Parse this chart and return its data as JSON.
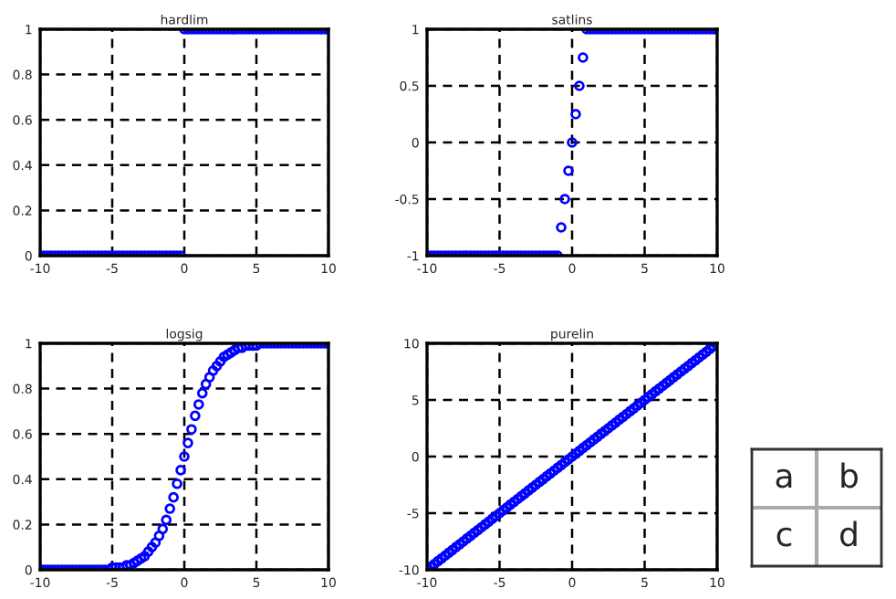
{
  "chart_data": [
    {
      "type": "scatter",
      "title": "hardlim",
      "color": "#0000ff",
      "marker": "circle",
      "grid": true,
      "xlim": [
        -10,
        10
      ],
      "ylim": [
        0,
        1
      ],
      "xticks": [
        -10,
        -5,
        0,
        5,
        10
      ],
      "yticks": [
        0,
        0.2,
        0.4,
        0.6,
        0.8,
        1
      ],
      "x": [
        -10,
        -9.75,
        -9.5,
        -9.25,
        -9,
        -8.75,
        -8.5,
        -8.25,
        -8,
        -7.75,
        -7.5,
        -7.25,
        -7,
        -6.75,
        -6.5,
        -6.25,
        -6,
        -5.75,
        -5.5,
        -5.25,
        -5,
        -4.75,
        -4.5,
        -4.25,
        -4,
        -3.75,
        -3.5,
        -3.25,
        -3,
        -2.75,
        -2.5,
        -2.25,
        -2,
        -1.75,
        -1.5,
        -1.25,
        -1,
        -0.75,
        -0.5,
        -0.25,
        0,
        0.25,
        0.5,
        0.75,
        1,
        1.25,
        1.5,
        1.75,
        2,
        2.25,
        2.5,
        2.75,
        3,
        3.25,
        3.5,
        3.75,
        4,
        4.25,
        4.5,
        4.75,
        5,
        5.25,
        5.5,
        5.75,
        6,
        6.25,
        6.5,
        6.75,
        7,
        7.25,
        7.5,
        7.75,
        8,
        8.25,
        8.5,
        8.75,
        9,
        9.25,
        9.5,
        9.75,
        10
      ],
      "values": [
        0,
        0,
        0,
        0,
        0,
        0,
        0,
        0,
        0,
        0,
        0,
        0,
        0,
        0,
        0,
        0,
        0,
        0,
        0,
        0,
        0,
        0,
        0,
        0,
        0,
        0,
        0,
        0,
        0,
        0,
        0,
        0,
        0,
        0,
        0,
        0,
        0,
        0,
        0,
        0,
        1,
        1,
        1,
        1,
        1,
        1,
        1,
        1,
        1,
        1,
        1,
        1,
        1,
        1,
        1,
        1,
        1,
        1,
        1,
        1,
        1,
        1,
        1,
        1,
        1,
        1,
        1,
        1,
        1,
        1,
        1,
        1,
        1,
        1,
        1,
        1,
        1,
        1,
        1,
        1,
        1
      ]
    },
    {
      "type": "scatter",
      "title": "satlins",
      "color": "#0000ff",
      "marker": "circle",
      "grid": true,
      "xlim": [
        -10,
        10
      ],
      "ylim": [
        -1,
        1
      ],
      "xticks": [
        -10,
        -5,
        0,
        5,
        10
      ],
      "yticks": [
        -1,
        -0.5,
        0,
        0.5,
        1
      ],
      "x": [
        -10,
        -9.75,
        -9.5,
        -9.25,
        -9,
        -8.75,
        -8.5,
        -8.25,
        -8,
        -7.75,
        -7.5,
        -7.25,
        -7,
        -6.75,
        -6.5,
        -6.25,
        -6,
        -5.75,
        -5.5,
        -5.25,
        -5,
        -4.75,
        -4.5,
        -4.25,
        -4,
        -3.75,
        -3.5,
        -3.25,
        -3,
        -2.75,
        -2.5,
        -2.25,
        -2,
        -1.75,
        -1.5,
        -1.25,
        -1,
        -0.75,
        -0.5,
        -0.25,
        0,
        0.25,
        0.5,
        0.75,
        1,
        1.25,
        1.5,
        1.75,
        2,
        2.25,
        2.5,
        2.75,
        3,
        3.25,
        3.5,
        3.75,
        4,
        4.25,
        4.5,
        4.75,
        5,
        5.25,
        5.5,
        5.75,
        6,
        6.25,
        6.5,
        6.75,
        7,
        7.25,
        7.5,
        7.75,
        8,
        8.25,
        8.5,
        8.75,
        9,
        9.25,
        9.5,
        9.75,
        10
      ],
      "values": [
        -1,
        -1,
        -1,
        -1,
        -1,
        -1,
        -1,
        -1,
        -1,
        -1,
        -1,
        -1,
        -1,
        -1,
        -1,
        -1,
        -1,
        -1,
        -1,
        -1,
        -1,
        -1,
        -1,
        -1,
        -1,
        -1,
        -1,
        -1,
        -1,
        -1,
        -1,
        -1,
        -1,
        -1,
        -1,
        -1,
        -1,
        -0.75,
        -0.5,
        -0.25,
        0,
        0.25,
        0.5,
        0.75,
        1,
        1,
        1,
        1,
        1,
        1,
        1,
        1,
        1,
        1,
        1,
        1,
        1,
        1,
        1,
        1,
        1,
        1,
        1,
        1,
        1,
        1,
        1,
        1,
        1,
        1,
        1,
        1,
        1,
        1,
        1,
        1,
        1,
        1,
        1,
        1,
        1
      ]
    },
    {
      "type": "scatter",
      "title": "logsig",
      "color": "#0000ff",
      "marker": "circle",
      "grid": true,
      "xlim": [
        -10,
        10
      ],
      "ylim": [
        0,
        1
      ],
      "xticks": [
        -10,
        -5,
        0,
        5,
        10
      ],
      "yticks": [
        0,
        0.2,
        0.4,
        0.6,
        0.8,
        1
      ],
      "x": [
        -10,
        -9.75,
        -9.5,
        -9.25,
        -9,
        -8.75,
        -8.5,
        -8.25,
        -8,
        -7.75,
        -7.5,
        -7.25,
        -7,
        -6.75,
        -6.5,
        -6.25,
        -6,
        -5.75,
        -5.5,
        -5.25,
        -5,
        -4.75,
        -4.5,
        -4.25,
        -4,
        -3.75,
        -3.5,
        -3.25,
        -3,
        -2.75,
        -2.5,
        -2.25,
        -2,
        -1.75,
        -1.5,
        -1.25,
        -1,
        -0.75,
        -0.5,
        -0.25,
        0,
        0.25,
        0.5,
        0.75,
        1,
        1.25,
        1.5,
        1.75,
        2,
        2.25,
        2.5,
        2.75,
        3,
        3.25,
        3.5,
        3.75,
        4,
        4.25,
        4.5,
        4.75,
        5,
        5.25,
        5.5,
        5.75,
        6,
        6.25,
        6.5,
        6.75,
        7,
        7.25,
        7.5,
        7.75,
        8,
        8.25,
        8.5,
        8.75,
        9,
        9.25,
        9.5,
        9.75,
        10
      ],
      "values": [
        0,
        0,
        0,
        0,
        0,
        0,
        0,
        0,
        0,
        0,
        0,
        0,
        0,
        0,
        0,
        0,
        0,
        0,
        0,
        0,
        0.01,
        0.01,
        0.01,
        0.01,
        0.02,
        0.02,
        0.03,
        0.04,
        0.05,
        0.06,
        0.08,
        0.1,
        0.12,
        0.15,
        0.18,
        0.22,
        0.27,
        0.32,
        0.38,
        0.44,
        0.5,
        0.56,
        0.62,
        0.68,
        0.73,
        0.78,
        0.82,
        0.85,
        0.88,
        0.9,
        0.92,
        0.94,
        0.95,
        0.96,
        0.97,
        0.98,
        0.98,
        0.99,
        0.99,
        0.99,
        0.99,
        1,
        1,
        1,
        1,
        1,
        1,
        1,
        1,
        1,
        1,
        1,
        1,
        1,
        1,
        1,
        1,
        1,
        1,
        1,
        1
      ]
    },
    {
      "type": "scatter",
      "title": "purelin",
      "color": "#0000ff",
      "marker": "circle",
      "grid": true,
      "xlim": [
        -10,
        10
      ],
      "ylim": [
        -10,
        10
      ],
      "xticks": [
        -10,
        -5,
        0,
        5,
        10
      ],
      "yticks": [
        -10,
        -5,
        0,
        5,
        10
      ],
      "x": [
        -10,
        -9.75,
        -9.5,
        -9.25,
        -9,
        -8.75,
        -8.5,
        -8.25,
        -8,
        -7.75,
        -7.5,
        -7.25,
        -7,
        -6.75,
        -6.5,
        -6.25,
        -6,
        -5.75,
        -5.5,
        -5.25,
        -5,
        -4.75,
        -4.5,
        -4.25,
        -4,
        -3.75,
        -3.5,
        -3.25,
        -3,
        -2.75,
        -2.5,
        -2.25,
        -2,
        -1.75,
        -1.5,
        -1.25,
        -1,
        -0.75,
        -0.5,
        -0.25,
        0,
        0.25,
        0.5,
        0.75,
        1,
        1.25,
        1.5,
        1.75,
        2,
        2.25,
        2.5,
        2.75,
        3,
        3.25,
        3.5,
        3.75,
        4,
        4.25,
        4.5,
        4.75,
        5,
        5.25,
        5.5,
        5.75,
        6,
        6.25,
        6.5,
        6.75,
        7,
        7.25,
        7.5,
        7.75,
        8,
        8.25,
        8.5,
        8.75,
        9,
        9.25,
        9.5,
        9.75,
        10
      ],
      "values": [
        -10,
        -9.75,
        -9.5,
        -9.25,
        -9,
        -8.75,
        -8.5,
        -8.25,
        -8,
        -7.75,
        -7.5,
        -7.25,
        -7,
        -6.75,
        -6.5,
        -6.25,
        -6,
        -5.75,
        -5.5,
        -5.25,
        -5,
        -4.75,
        -4.5,
        -4.25,
        -4,
        -3.75,
        -3.5,
        -3.25,
        -3,
        -2.75,
        -2.5,
        -2.25,
        -2,
        -1.75,
        -1.5,
        -1.25,
        -1,
        -0.75,
        -0.5,
        -0.25,
        0,
        0.25,
        0.5,
        0.75,
        1,
        1.25,
        1.5,
        1.75,
        2,
        2.25,
        2.5,
        2.75,
        3,
        3.25,
        3.5,
        3.75,
        4,
        4.25,
        4.5,
        4.75,
        5,
        5.25,
        5.5,
        5.75,
        6,
        6.25,
        6.5,
        6.75,
        7,
        7.25,
        7.5,
        7.75,
        8,
        8.25,
        8.5,
        8.75,
        9,
        9.25,
        9.5,
        9.75,
        10
      ]
    },
    {
      "type": "other",
      "annotations": [
        "a",
        "b",
        "c",
        "d"
      ]
    }
  ]
}
